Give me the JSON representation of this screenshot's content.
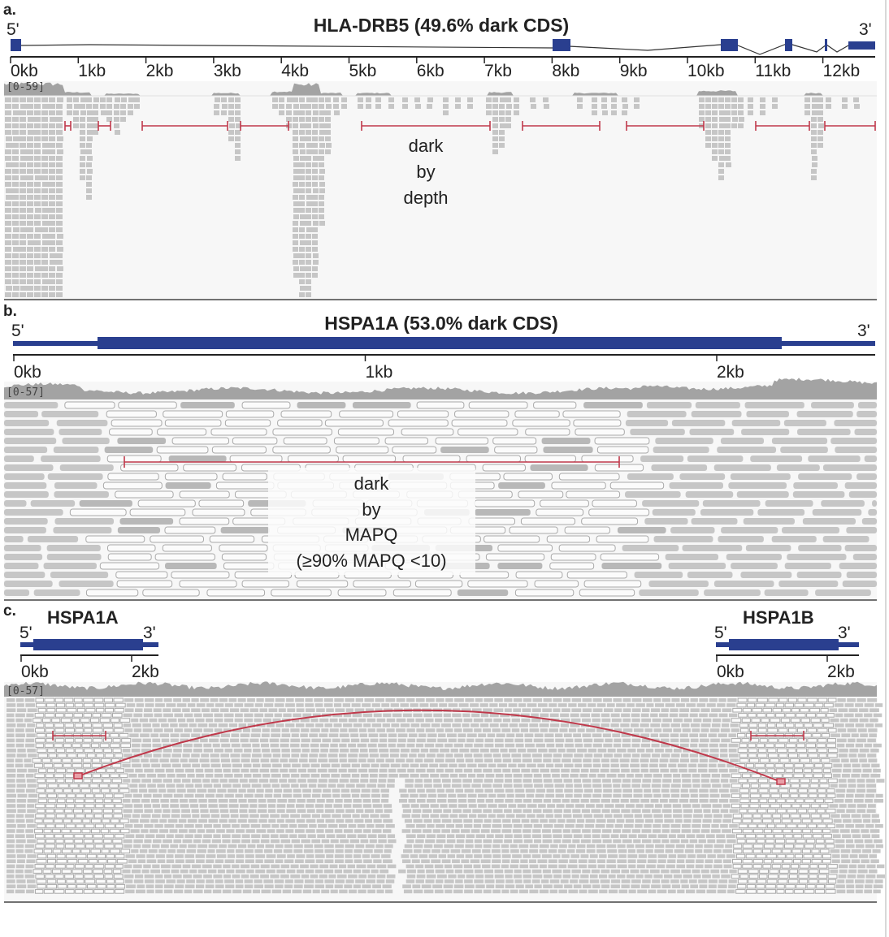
{
  "colors": {
    "exon": "#2a3f8f",
    "read": "#c6c6c6",
    "read_low_mapq": "#fbfbfb",
    "coverage": "#a3a3a3",
    "dark_region_marker": "#c0394b",
    "track_background": "#f6f6f6"
  },
  "panels": {
    "a": {
      "letter": "a.",
      "title": "HLA-DRB5 (49.6% dark CDS)",
      "five_prime": "5'",
      "three_prime": "3'",
      "scale_ticks": [
        "0kb",
        "1kb",
        "2kb",
        "3kb",
        "4kb",
        "5kb",
        "6kb",
        "7kb",
        "8kb",
        "9kb",
        "10kb",
        "11kb",
        "12kb"
      ],
      "coverage_range": "[0-59]",
      "annotation_lines": [
        "dark",
        "by",
        "depth"
      ]
    },
    "b": {
      "letter": "b.",
      "title": "HSPA1A (53.0% dark CDS)",
      "five_prime": "5'",
      "three_prime": "3'",
      "scale_ticks": [
        "0kb",
        "1kb",
        "2kb"
      ],
      "coverage_range": "[0-57]",
      "annotation_lines": [
        "dark",
        "by",
        "MAPQ",
        "(≥90% MAPQ <10)"
      ]
    },
    "c": {
      "letter": "c.",
      "left_gene": {
        "name": "HSPA1A",
        "five_prime": "5'",
        "three_prime": "3'",
        "scale_ticks": [
          "0kb",
          "2kb"
        ]
      },
      "right_gene": {
        "name": "HSPA1B",
        "five_prime": "5'",
        "three_prime": "3'",
        "scale_ticks": [
          "0kb",
          "2kb"
        ]
      },
      "coverage_range": "[0-57]"
    }
  }
}
